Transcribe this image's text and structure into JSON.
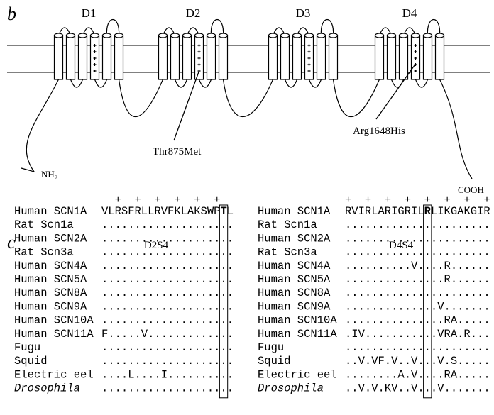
{
  "panel_b": {
    "label": "b",
    "domains": [
      "D1",
      "D2",
      "D3",
      "D4"
    ],
    "n_terminus": "NH₂",
    "c_terminus": "COOH",
    "mutations": [
      "Thr875Met",
      "Arg1648His"
    ]
  },
  "panel_c": {
    "label": "c",
    "alignments": [
      {
        "title": "D2S4",
        "charges": "  +  +  +  +  +  +",
        "rows": [
          [
            "Human SCN1A",
            "VLRSFRLLRVFKLAKSWPTL"
          ],
          [
            "Rat Scn1a",
            "...................."
          ],
          [
            "Human SCN2A",
            "...................."
          ],
          [
            "Rat Scn3a",
            "...................."
          ],
          [
            "Human SCN4A",
            "...................."
          ],
          [
            "Human SCN5A",
            "...................."
          ],
          [
            "Human SCN8A",
            "...................."
          ],
          [
            "Human SCN9A",
            "...................."
          ],
          [
            "Human SCN10A",
            "...................."
          ],
          [
            "Human SCN11A",
            "F.....V............."
          ],
          [
            "Fugu",
            "...................."
          ],
          [
            "Squid",
            "...................."
          ],
          [
            "Electric eel",
            "....L....I.........."
          ],
          [
            "Drosophila",
            "...................."
          ]
        ]
      },
      {
        "title": "D4S4",
        "charges": "+  +  +  +  +  +  +  +",
        "rows": [
          [
            "Human SCN1A",
            "RVIRLARIGRILRLIKGAKGIR"
          ],
          [
            "Rat Scn1a",
            "......................"
          ],
          [
            "Human SCN2A",
            "......................"
          ],
          [
            "Rat Scn3a",
            "......................"
          ],
          [
            "Human SCN4A",
            "..........V....R......"
          ],
          [
            "Human SCN5A",
            "...............R......"
          ],
          [
            "Human SCN8A",
            "......................"
          ],
          [
            "Human SCN9A",
            "..............V......."
          ],
          [
            "Human SCN10A",
            "...............RA....."
          ],
          [
            "Human SCN11A",
            ".IV...........VRA.R..."
          ],
          [
            "Fugu",
            "......................"
          ],
          [
            "Squid",
            "..V.VF.V..V...V.S....."
          ],
          [
            "Electric eel",
            "........A.V....RA....."
          ],
          [
            "Drosophila",
            "..V.V.KV..V...V......."
          ]
        ]
      }
    ]
  }
}
